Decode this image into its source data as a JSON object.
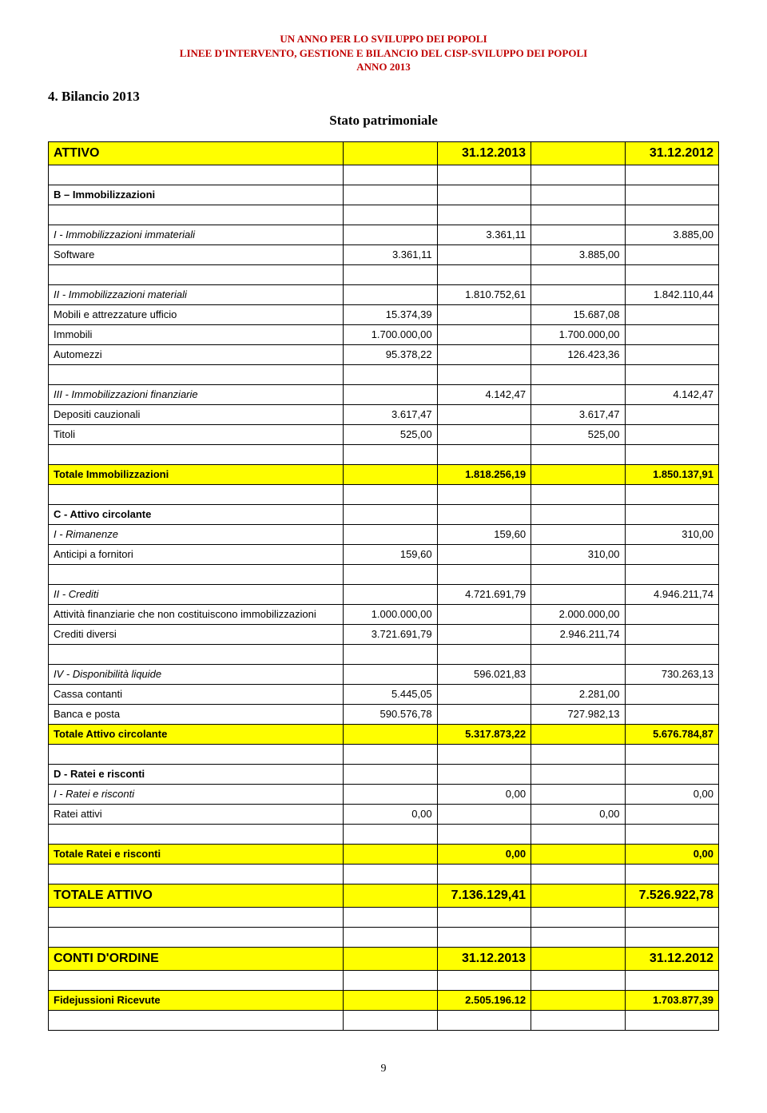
{
  "header": {
    "line1": "UN ANNO PER LO SVILUPPO DEI POPOLI",
    "line2": "LINEE D'INTERVENTO, GESTIONE E BILANCIO DEL CISP-SVILUPPO DEI POPOLI",
    "line3": "ANNO 2013"
  },
  "section_number": "4. Bilancio 2013",
  "subtitle": "Stato patrimoniale",
  "columns": {
    "c2013": "31.12.2013",
    "c2012": "31.12.2012"
  },
  "attivo_label": "ATTIVO",
  "b_immob": "B – Immobilizzazioni",
  "rows": {
    "i_immateriali": {
      "label": "I - Immobilizzazioni immateriali",
      "v1": "3.361,11",
      "v2": "3.885,00"
    },
    "software": {
      "label": "Software",
      "a": "3.361,11",
      "b": "3.885,00"
    },
    "ii_materiali": {
      "label": "II - Immobilizzazioni materiali",
      "v1": "1.810.752,61",
      "v2": "1.842.110,44"
    },
    "mobili": {
      "label": "Mobili e attrezzature ufficio",
      "a": "15.374,39",
      "b": "15.687,08"
    },
    "immobili": {
      "label": "Immobili",
      "a": "1.700.000,00",
      "b": "1.700.000,00"
    },
    "automezzi": {
      "label": "Automezzi",
      "a": "95.378,22",
      "b": "126.423,36"
    },
    "iii_fin": {
      "label": "III - Immobilizzazioni finanziarie",
      "v1": "4.142,47",
      "v2": "4.142,47"
    },
    "depositi": {
      "label": "Depositi cauzionali",
      "a": "3.617,47",
      "b": "3.617,47"
    },
    "titoli": {
      "label": "Titoli",
      "a": "525,00",
      "b": "525,00"
    },
    "tot_immob": {
      "label": "Totale Immobilizzazioni",
      "v1": "1.818.256,19",
      "v2": "1.850.137,91"
    },
    "c_attivo": "C - Attivo circolante",
    "i_riman": {
      "label": "I - Rimanenze",
      "v1": "159,60",
      "v2": "310,00"
    },
    "anticipi": {
      "label": "Anticipi a fornitori",
      "a": "159,60",
      "b": "310,00"
    },
    "ii_crediti": {
      "label": "II - Crediti",
      "v1": "4.721.691,79",
      "v2": "4.946.211,74"
    },
    "attivita_fin": {
      "label": "Attività finanziarie che non costituiscono immobilizzazioni",
      "a": "1.000.000,00",
      "b": "2.000.000,00"
    },
    "crediti_div": {
      "label": "Crediti diversi",
      "a": "3.721.691,79",
      "b": "2.946.211,74"
    },
    "iv_disp": {
      "label": "IV - Disponibilità liquide",
      "v1": "596.021,83",
      "v2": "730.263,13"
    },
    "cassa": {
      "label": "Cassa contanti",
      "a": "5.445,05",
      "b": "2.281,00"
    },
    "banca": {
      "label": "Banca e posta",
      "a": "590.576,78",
      "b": "727.982,13"
    },
    "tot_circ": {
      "label": "Totale Attivo circolante",
      "v1": "5.317.873,22",
      "v2": "5.676.784,87"
    },
    "d_ratei": "D - Ratei e risconti",
    "i_ratei": {
      "label": "I - Ratei e risconti",
      "v1": "0,00",
      "v2": "0,00"
    },
    "ratei_att": {
      "label": "Ratei attivi",
      "a": "0,00",
      "b": "0,00"
    },
    "tot_ratei": {
      "label": "Totale Ratei e risconti",
      "v1": "0,00",
      "v2": "0,00"
    },
    "tot_attivo": {
      "label": "TOTALE ATTIVO",
      "v1": "7.136.129,41",
      "v2": "7.526.922,78"
    },
    "conti_ord": {
      "label": "CONTI D'ORDINE",
      "v1": "31.12.2013",
      "v2": "31.12.2012"
    },
    "fidej": {
      "label": "Fidejussioni Ricevute",
      "v1": "2.505.196.12",
      "v2": "1.703.877,39"
    }
  },
  "page_number": "9",
  "colors": {
    "highlight": "#ffff00",
    "header_text": "#c00000",
    "border": "#000000",
    "background": "#ffffff"
  },
  "fonts": {
    "body_serif": "Times New Roman",
    "table_sans": "Arial",
    "heading_size_pt": 17,
    "table_size_pt": 13
  }
}
